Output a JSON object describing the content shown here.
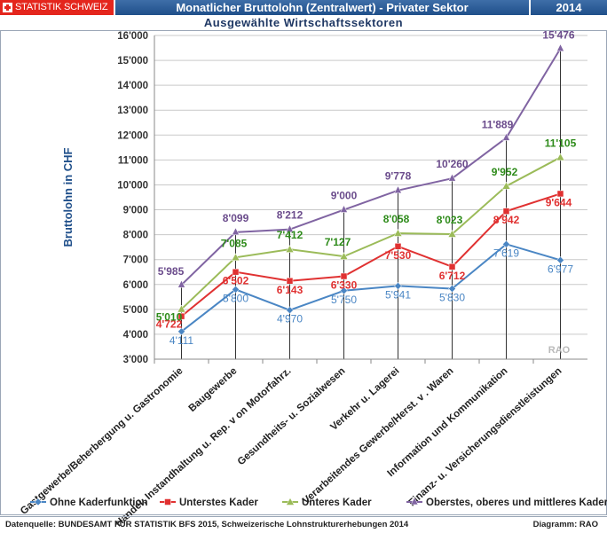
{
  "header": {
    "brand": "STATISTIK SCHWEIZ",
    "title": "Monatlicher Bruttolohn (Zentralwert) - Privater Sektor",
    "year": "2014"
  },
  "chart_data": {
    "type": "line",
    "subtitle": "Ausgewählte Wirtschaftssektoren",
    "ylabel": "Bruttolohn in CHF",
    "ylim": [
      3000,
      16000
    ],
    "yticks": [
      3000,
      4000,
      5000,
      6000,
      7000,
      8000,
      9000,
      10000,
      11000,
      12000,
      13000,
      14000,
      15000,
      16000
    ],
    "ytick_labels": [
      "3'000",
      "4'000",
      "5'000",
      "6'000",
      "7'000",
      "8'000",
      "9'000",
      "10'000",
      "11'000",
      "12'000",
      "13'000",
      "14'000",
      "15'000",
      "16'000"
    ],
    "categories": [
      "Gastgewerbe/Beherbergung u. Gastronomie",
      "Baugewerbe",
      "Handel; Instandhaltung u. Rep. v on Motorfahrz.",
      "Gesundheits- u. Sozialwesen",
      "Verkehr u. Lagerei",
      "Verarbeitendes Gewerbe/Herst. v . Waren",
      "Information und Kommunikation",
      "Finanz- u. Versicherungsdienstleistungen"
    ],
    "series": [
      {
        "name": "Ohne Kaderfunktion",
        "color": "#4a86c4",
        "marker": "diamond",
        "values": [
          4111,
          5800,
          4970,
          5750,
          5941,
          5830,
          7619,
          6977
        ],
        "labels": [
          "4'111",
          "5'800",
          "4'970",
          "5'750",
          "5'941",
          "5'830",
          "7'619",
          "6'977"
        ]
      },
      {
        "name": "Unterstes Kader",
        "color": "#e03131",
        "marker": "square",
        "values": [
          4722,
          6502,
          6143,
          6330,
          7530,
          6712,
          8942,
          9644
        ],
        "labels": [
          "4'722",
          "6'502",
          "6'143",
          "6'330",
          "7'530",
          "6'712",
          "8'942",
          "9'644"
        ]
      },
      {
        "name": "Unteres Kader",
        "color": "#9bbb59",
        "marker": "triangle",
        "values": [
          5010,
          7085,
          7412,
          7127,
          8058,
          8023,
          9952,
          11105
        ],
        "labels": [
          "5'010",
          "7'085",
          "7'412",
          "7'127",
          "8'058",
          "8'023",
          "9'952",
          "11'105"
        ]
      },
      {
        "name": "Oberstes, oberes und mittleres Kader",
        "color": "#8064a2",
        "marker": "star",
        "values": [
          5985,
          8099,
          8212,
          9000,
          9778,
          10260,
          11889,
          15476
        ],
        "labels": [
          "5'985",
          "8'099",
          "8'212",
          "9'000",
          "9'778",
          "10'260",
          "11'889",
          "15'476"
        ]
      }
    ],
    "label_colors": [
      "#4a86c4",
      "#e03131",
      "#2e8b1a",
      "#6b4c8c"
    ],
    "watermark": "RAO",
    "grid": "horizontal",
    "legend": "bottom"
  },
  "footer": {
    "source": "Datenquelle: BUNDESAMT FÜR STATISTIK BFS 2015, Schweizerische Lohnstrukturerhebungen 2014",
    "diagram": "Diagramm: RAO"
  }
}
